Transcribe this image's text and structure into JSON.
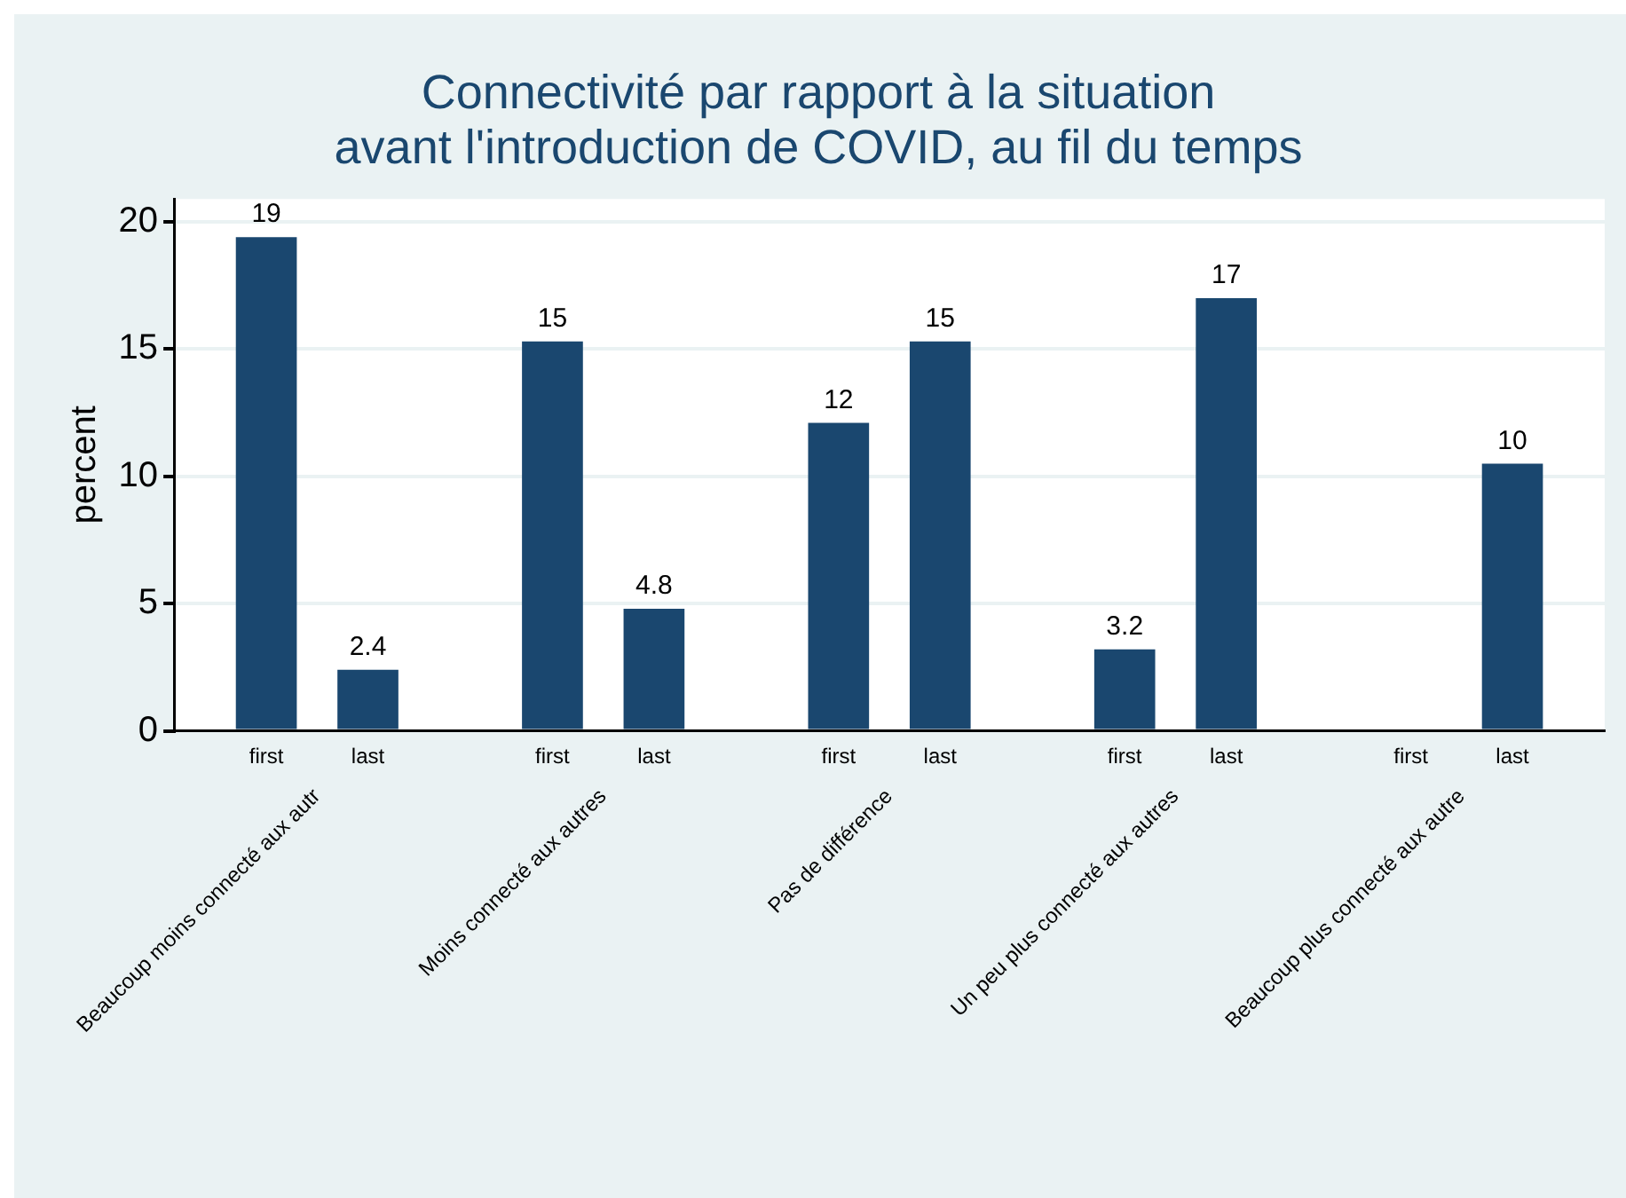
{
  "chart_data": {
    "type": "bar",
    "title": "Connectivité par rapport à la situation\navant l'introduction de COVID, au fil du temps",
    "ylabel": "percent",
    "categories": [
      "Beaucoup moins connecté aux autr",
      "Moins connecté aux autres",
      "Pas de différence",
      "Un peu plus connecté aux autres",
      "Beaucoup plus connecté aux autre"
    ],
    "series": [
      {
        "name": "first",
        "color": "#1a476f",
        "values": [
          19.4,
          15.3,
          12.1,
          3.2,
          null
        ],
        "value_labels": [
          "19",
          "15",
          "12",
          "3.2",
          null
        ]
      },
      {
        "name": "last",
        "color": "#1a476f",
        "values": [
          2.4,
          4.8,
          15.3,
          17.0,
          10.5
        ],
        "value_labels": [
          "2.4",
          "4.8",
          "15",
          "17",
          "10"
        ]
      }
    ],
    "ylim": [
      0,
      20.9
    ],
    "yticks": [
      0,
      5,
      10,
      15,
      20
    ],
    "grid": "y",
    "legend": false
  }
}
